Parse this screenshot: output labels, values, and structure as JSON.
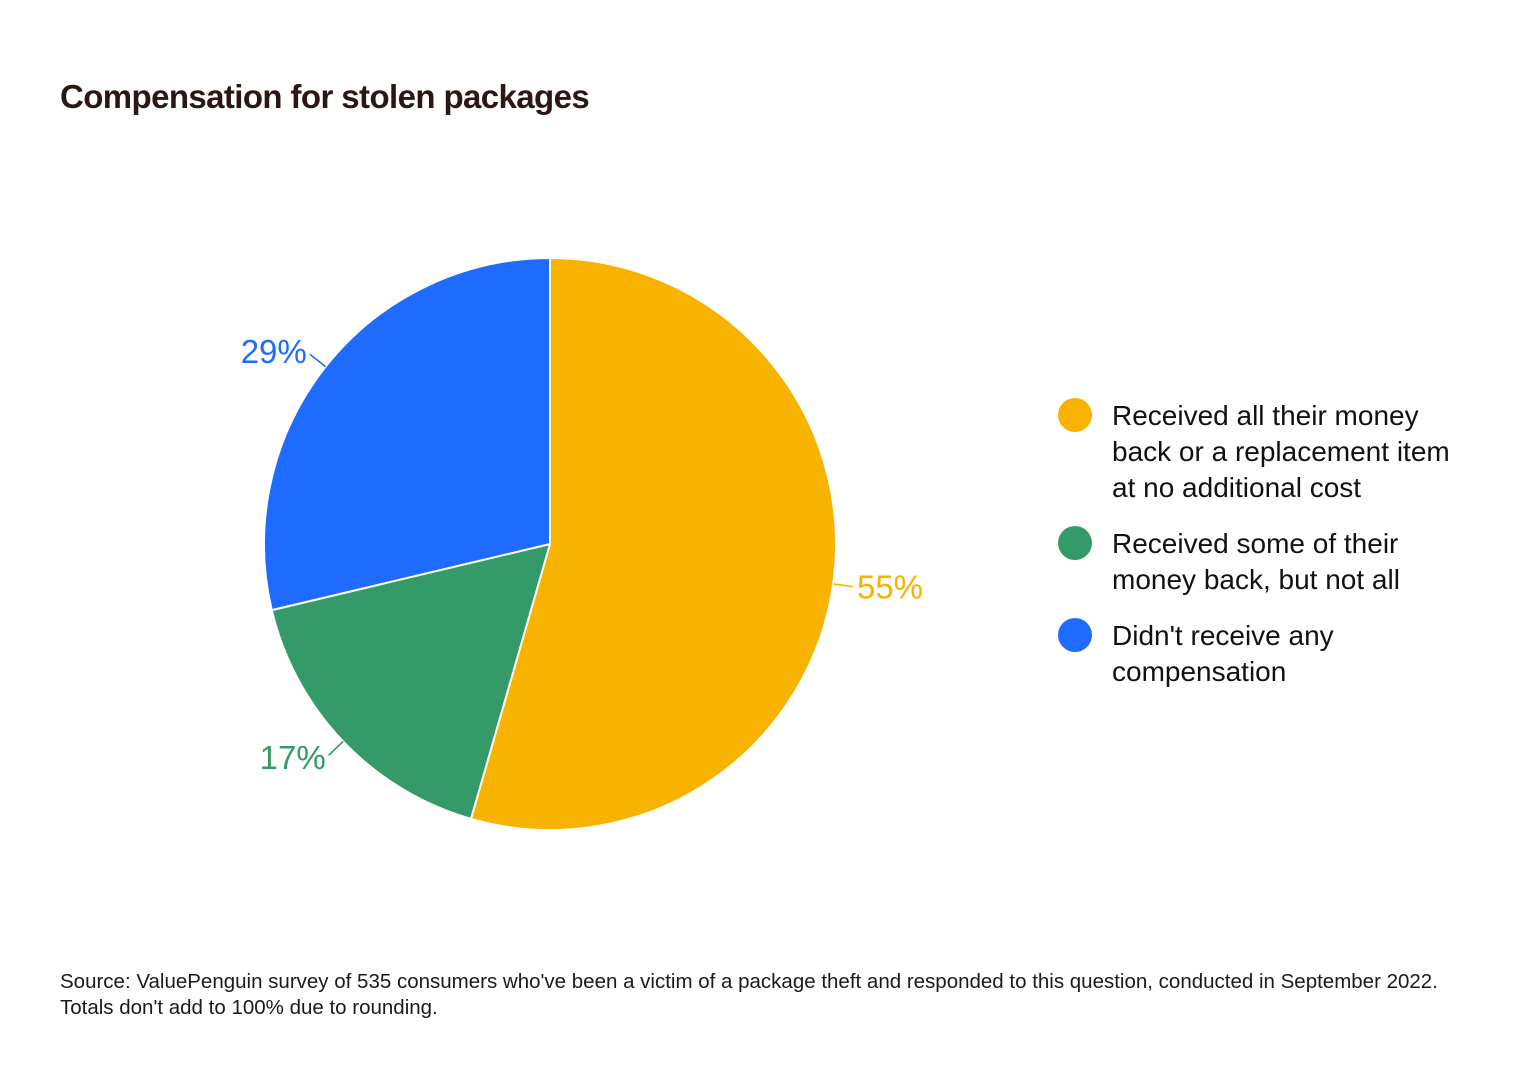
{
  "chart_data": {
    "type": "pie",
    "title": "Compensation for stolen packages",
    "slices": [
      {
        "label": "Received all their money back or a replacement item at no additional cost",
        "value": 55,
        "display": "55%",
        "color": "#f8b200"
      },
      {
        "label": "Received some of their money back, but not all",
        "value": 17,
        "display": "17%",
        "color": "#349a68"
      },
      {
        "label": "Didn't receive any compensation",
        "value": 29,
        "display": "29%",
        "color": "#1f6bff"
      }
    ],
    "legend_position": "right",
    "start": "top",
    "direction": "clockwise"
  },
  "source": "Source: ValuePenguin survey of 535 consumers who've been a victim of a package theft and responded to this question, conducted in September 2022. Totals don't add to 100% due to rounding."
}
